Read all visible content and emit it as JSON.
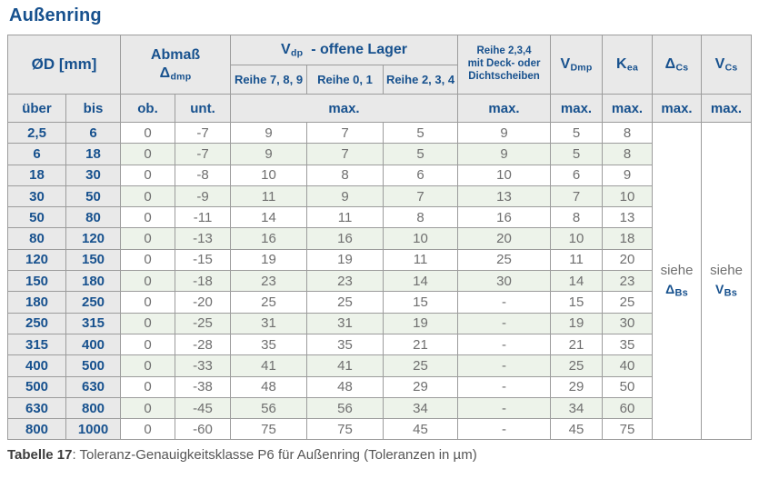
{
  "title": "Außenring",
  "colors": {
    "accent_navy": "#17518e",
    "header_bg": "#e9e9e9",
    "row_alt_green": "#edf3ea",
    "data_text": "#6f6f6f"
  },
  "table": {
    "header": {
      "od": "ØD  [mm]",
      "abmass_line1": "Abmaß",
      "abmass_sym": "Δ",
      "abmass_sub": "dmp",
      "vdp_base": "V",
      "vdp_sub": "dp",
      "vdp_rest": "-  offene Lager",
      "reihe789": "Reihe 7, 8, 9",
      "reihe01": "Reihe 0, 1",
      "reihe234": "Reihe 2, 3, 4",
      "deck_line1": "Reihe 2,3,4",
      "deck_line2": "mit Deck- oder",
      "deck_line3": "Dichtscheiben",
      "vdmp_base": "V",
      "vdmp_sub": "Dmp",
      "kea_base": "K",
      "kea_sub": "ea",
      "dcs_base": "Δ",
      "dcs_sub": "Cs",
      "vcs_base": "V",
      "vcs_sub": "Cs",
      "ueber": "über",
      "bis": "bis",
      "ob": "ob.",
      "unt": "unt.",
      "max": "max."
    },
    "rows": [
      {
        "ueber": "2,5",
        "bis": "6",
        "ob": "0",
        "unt": "-7",
        "r789": "9",
        "r01": "7",
        "r234": "5",
        "deck": "9",
        "vdmp": "5",
        "kea": "8"
      },
      {
        "ueber": "6",
        "bis": "18",
        "ob": "0",
        "unt": "-7",
        "r789": "9",
        "r01": "7",
        "r234": "5",
        "deck": "9",
        "vdmp": "5",
        "kea": "8"
      },
      {
        "ueber": "18",
        "bis": "30",
        "ob": "0",
        "unt": "-8",
        "r789": "10",
        "r01": "8",
        "r234": "6",
        "deck": "10",
        "vdmp": "6",
        "kea": "9"
      },
      {
        "ueber": "30",
        "bis": "50",
        "ob": "0",
        "unt": "-9",
        "r789": "11",
        "r01": "9",
        "r234": "7",
        "deck": "13",
        "vdmp": "7",
        "kea": "10"
      },
      {
        "ueber": "50",
        "bis": "80",
        "ob": "0",
        "unt": "-11",
        "r789": "14",
        "r01": "11",
        "r234": "8",
        "deck": "16",
        "vdmp": "8",
        "kea": "13"
      },
      {
        "ueber": "80",
        "bis": "120",
        "ob": "0",
        "unt": "-13",
        "r789": "16",
        "r01": "16",
        "r234": "10",
        "deck": "20",
        "vdmp": "10",
        "kea": "18"
      },
      {
        "ueber": "120",
        "bis": "150",
        "ob": "0",
        "unt": "-15",
        "r789": "19",
        "r01": "19",
        "r234": "11",
        "deck": "25",
        "vdmp": "11",
        "kea": "20"
      },
      {
        "ueber": "150",
        "bis": "180",
        "ob": "0",
        "unt": "-18",
        "r789": "23",
        "r01": "23",
        "r234": "14",
        "deck": "30",
        "vdmp": "14",
        "kea": "23"
      },
      {
        "ueber": "180",
        "bis": "250",
        "ob": "0",
        "unt": "-20",
        "r789": "25",
        "r01": "25",
        "r234": "15",
        "deck": "-",
        "vdmp": "15",
        "kea": "25"
      },
      {
        "ueber": "250",
        "bis": "315",
        "ob": "0",
        "unt": "-25",
        "r789": "31",
        "r01": "31",
        "r234": "19",
        "deck": "-",
        "vdmp": "19",
        "kea": "30"
      },
      {
        "ueber": "315",
        "bis": "400",
        "ob": "0",
        "unt": "-28",
        "r789": "35",
        "r01": "35",
        "r234": "21",
        "deck": "-",
        "vdmp": "21",
        "kea": "35"
      },
      {
        "ueber": "400",
        "bis": "500",
        "ob": "0",
        "unt": "-33",
        "r789": "41",
        "r01": "41",
        "r234": "25",
        "deck": "-",
        "vdmp": "25",
        "kea": "40"
      },
      {
        "ueber": "500",
        "bis": "630",
        "ob": "0",
        "unt": "-38",
        "r789": "48",
        "r01": "48",
        "r234": "29",
        "deck": "-",
        "vdmp": "29",
        "kea": "50"
      },
      {
        "ueber": "630",
        "bis": "800",
        "ob": "0",
        "unt": "-45",
        "r789": "56",
        "r01": "56",
        "r234": "34",
        "deck": "-",
        "vdmp": "34",
        "kea": "60"
      },
      {
        "ueber": "800",
        "bis": "1000",
        "ob": "0",
        "unt": "-60",
        "r789": "75",
        "r01": "75",
        "r234": "45",
        "deck": "-",
        "vdmp": "45",
        "kea": "75"
      }
    ],
    "see": {
      "siehe": "siehe",
      "delta_base": "Δ",
      "delta_sub": "Bs",
      "v_base": "V",
      "v_sub": "Bs"
    }
  },
  "caption": {
    "bold": "Tabelle 17",
    "rest": ": Toleranz-Genauigkeitsklasse P6 für Außenring (Toleranzen in µm)"
  }
}
